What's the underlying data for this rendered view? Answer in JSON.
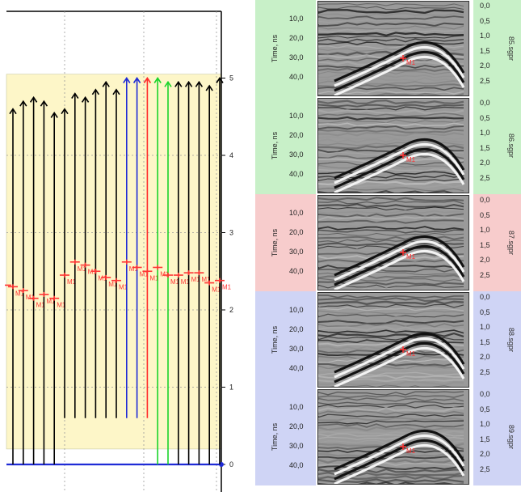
{
  "left_plot": {
    "y_ticks": [
      "0",
      "1",
      "2",
      "3",
      "4",
      "5"
    ],
    "marker_label": "M1",
    "colors": {
      "band": "#fdf6c8",
      "black": "#000000",
      "blue": "#1f2bd6",
      "red": "#ff2a2a",
      "green": "#19d42a",
      "marker": "#ff3333",
      "baseline": "#1f2bd6"
    },
    "traces": [
      {
        "color": "black",
        "top": 4.6,
        "bottom": 0.0,
        "marker": 2.3
      },
      {
        "color": "black",
        "top": 4.7,
        "bottom": 0.0,
        "marker": 2.25
      },
      {
        "color": "black",
        "top": 4.75,
        "bottom": 0.0,
        "marker": 2.15
      },
      {
        "color": "black",
        "top": 4.7,
        "bottom": 0.0,
        "marker": 2.2
      },
      {
        "color": "black",
        "top": 4.55,
        "bottom": 0.0,
        "marker": 2.15
      },
      {
        "color": "black",
        "top": 4.6,
        "bottom": 0.6,
        "marker": 2.45
      },
      {
        "color": "black",
        "top": 4.8,
        "bottom": 0.6,
        "marker": 2.62
      },
      {
        "color": "black",
        "top": 4.75,
        "bottom": 0.6,
        "marker": 2.58
      },
      {
        "color": "black",
        "top": 4.85,
        "bottom": 0.6,
        "marker": 2.5
      },
      {
        "color": "black",
        "top": 4.95,
        "bottom": 0.6,
        "marker": 2.42
      },
      {
        "color": "black",
        "top": 4.85,
        "bottom": 0.6,
        "marker": 2.38
      },
      {
        "color": "blue",
        "top": 5.0,
        "bottom": 0.6,
        "marker": 2.62
      },
      {
        "color": "blue",
        "top": 5.0,
        "bottom": 0.6,
        "marker": 2.55
      },
      {
        "color": "red",
        "top": 5.0,
        "bottom": 0.6,
        "marker": 2.5
      },
      {
        "color": "green",
        "top": 5.0,
        "bottom": 0.0,
        "marker": 2.55
      },
      {
        "color": "green",
        "top": 4.95,
        "bottom": 0.0,
        "marker": 2.45
      },
      {
        "color": "black",
        "top": 4.95,
        "bottom": 0.0,
        "marker": 2.45
      },
      {
        "color": "black",
        "top": 4.95,
        "bottom": 0.0,
        "marker": 2.48
      },
      {
        "color": "black",
        "top": 4.95,
        "bottom": 0.0,
        "marker": 2.48
      },
      {
        "color": "black",
        "top": 4.9,
        "bottom": 0.0,
        "marker": 2.35
      },
      {
        "color": "black",
        "top": 5.0,
        "bottom": 0.0,
        "marker": 2.38
      }
    ]
  },
  "profiles": [
    {
      "bg": "#c8f0c8",
      "ylabel": "Time, ns",
      "time_ticks": [
        "10,0",
        "20,0",
        "30,0",
        "40,0"
      ],
      "depth_ticks": [
        "0,0",
        "0,5",
        "1,0",
        "1,5",
        "2,0",
        "2,5"
      ],
      "file": "85.sgpr",
      "marker": "M1"
    },
    {
      "bg": "#c8f0c8",
      "ylabel": "Time, ns",
      "time_ticks": [
        "10,0",
        "20,0",
        "30,0",
        "40,0"
      ],
      "depth_ticks": [
        "0,0",
        "0,5",
        "1,0",
        "1,5",
        "2,0",
        "2,5"
      ],
      "file": "86.sgpr",
      "marker": "M1"
    },
    {
      "bg": "#f7cccc",
      "ylabel": "Time, ns",
      "time_ticks": [
        "10,0",
        "20,0",
        "30,0",
        "40,0"
      ],
      "depth_ticks": [
        "0,0",
        "0,5",
        "1,0",
        "1,5",
        "2,0",
        "2,5"
      ],
      "file": "87.sgpr",
      "marker": "M1"
    },
    {
      "bg": "#cfd4f5",
      "ylabel": "Time, ns",
      "time_ticks": [
        "10,0",
        "20,0",
        "30,0",
        "40,0"
      ],
      "depth_ticks": [
        "0,0",
        "0,5",
        "1,0",
        "1,5",
        "2,0",
        "2,5"
      ],
      "file": "88.sgpr",
      "marker": "M1"
    },
    {
      "bg": "#cfd4f5",
      "ylabel": "Time, ns",
      "time_ticks": [
        "10,0",
        "20,0",
        "30,0",
        "40,0"
      ],
      "depth_ticks": [
        "0,0",
        "0,5",
        "1,0",
        "1,5",
        "2,0",
        "2,5"
      ],
      "file": "89.sgpr",
      "marker": "M1"
    }
  ]
}
